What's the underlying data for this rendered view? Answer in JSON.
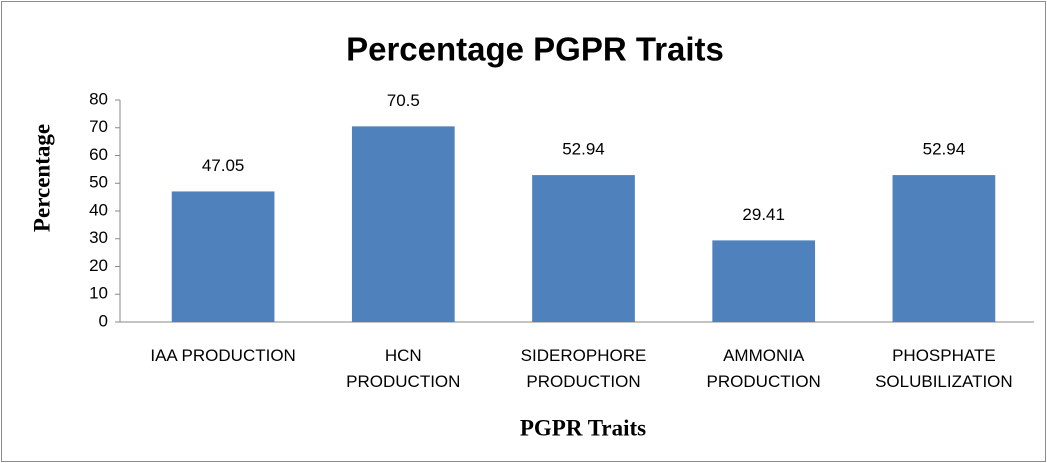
{
  "chart_data": {
    "type": "bar",
    "title": "Percentage PGPR Traits",
    "x_label": "PGPR Traits",
    "y_label": "Percentage",
    "categories": [
      "IAA PRODUCTION",
      "HCN\nPRODUCTION",
      "SIDEROPHORE\nPRODUCTION",
      "AMMONIA\nPRODUCTION",
      "PHOSPHATE\nSOLUBILIZATION"
    ],
    "values": [
      47.05,
      70.5,
      52.94,
      29.41,
      52.94
    ],
    "color": "#4f81bd",
    "ylim": [
      0,
      80
    ],
    "yticks": [
      0,
      10,
      20,
      30,
      40,
      50,
      60,
      70,
      80
    ],
    "grid": false
  }
}
